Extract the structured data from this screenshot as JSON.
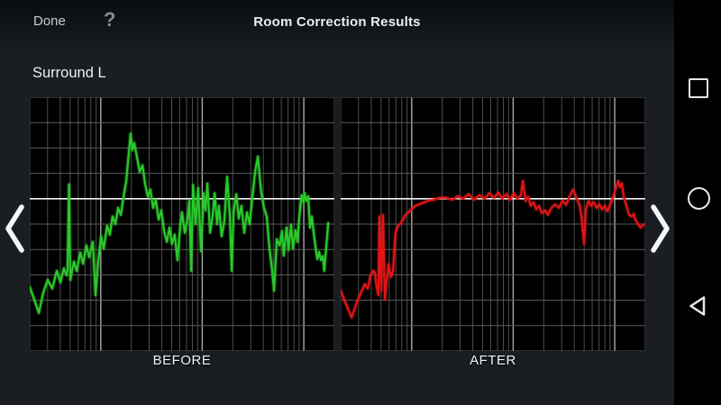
{
  "header": {
    "done_label": "Done",
    "help_icon": "?",
    "title": "Room Correction Results"
  },
  "channel_label": "Surround L",
  "colors": {
    "app_bg": "#1a1d21",
    "header_bg": "#0d1014",
    "nav_bg": "#000000",
    "chart_bg": "#000000",
    "grid_minor": "#4e4e4e",
    "grid_horizontal": "#5c5c5c",
    "grid_major": "#a9a9a9",
    "reference_line": "#f2f2f2",
    "before_curve": "#2bc92b",
    "after_curve": "#e41414",
    "icon_color": "#e6e8ea"
  },
  "chart_data": [
    {
      "type": "line",
      "title": "BEFORE",
      "x_axis": {
        "scale": "log",
        "min_hz": 20,
        "max_hz": 20000,
        "gridlines_hz": [
          20,
          30,
          40,
          50,
          60,
          70,
          80,
          90,
          100,
          200,
          300,
          400,
          500,
          600,
          700,
          800,
          900,
          1000,
          2000,
          3000,
          4000,
          5000,
          6000,
          7000,
          8000,
          9000,
          10000,
          20000
        ],
        "major_gridlines_hz": [
          100,
          1000,
          10000
        ]
      },
      "y_axis": {
        "unit": "dB",
        "min": -30,
        "max": 20,
        "gridline_step": 5,
        "reference_db": 0
      },
      "series": [
        {
          "name": "before-correction-response",
          "color": "#2bc92b",
          "points": [
            [
              0.0,
              -17.4
            ],
            [
              0.015,
              -19.9
            ],
            [
              0.03,
              -22.5
            ],
            [
              0.044,
              -18.6
            ],
            [
              0.059,
              -16.0
            ],
            [
              0.074,
              -17.7
            ],
            [
              0.089,
              -14.2
            ],
            [
              0.101,
              -16.5
            ],
            [
              0.112,
              -13.7
            ],
            [
              0.121,
              -15.1
            ],
            [
              0.124,
              -14.2
            ],
            [
              0.129,
              2.8
            ],
            [
              0.133,
              -16.0
            ],
            [
              0.145,
              -12.4
            ],
            [
              0.154,
              -14.2
            ],
            [
              0.166,
              -10.6
            ],
            [
              0.175,
              -12.8
            ],
            [
              0.186,
              -9.2
            ],
            [
              0.195,
              -11.5
            ],
            [
              0.207,
              -8.5
            ],
            [
              0.216,
              -19.0
            ],
            [
              0.225,
              -12.4
            ],
            [
              0.234,
              -7.4
            ],
            [
              0.243,
              -9.8
            ],
            [
              0.254,
              -5.3
            ],
            [
              0.263,
              -7.1
            ],
            [
              0.272,
              -3.5
            ],
            [
              0.281,
              -5.0
            ],
            [
              0.29,
              -1.8
            ],
            [
              0.299,
              -3.2
            ],
            [
              0.308,
              0.4
            ],
            [
              0.317,
              3.5
            ],
            [
              0.325,
              8.9
            ],
            [
              0.331,
              12.8
            ],
            [
              0.337,
              9.6
            ],
            [
              0.343,
              11.0
            ],
            [
              0.352,
              8.2
            ],
            [
              0.361,
              5.3
            ],
            [
              0.37,
              6.6
            ],
            [
              0.379,
              2.8
            ],
            [
              0.388,
              0.4
            ],
            [
              0.396,
              1.8
            ],
            [
              0.405,
              -1.8
            ],
            [
              0.414,
              -0.2
            ],
            [
              0.423,
              -4.1
            ],
            [
              0.432,
              -2.3
            ],
            [
              0.441,
              -6.4
            ],
            [
              0.45,
              -8.5
            ],
            [
              0.459,
              -5.7
            ],
            [
              0.467,
              -8.9
            ],
            [
              0.476,
              -7.1
            ],
            [
              0.485,
              -12.1
            ],
            [
              0.494,
              -5.3
            ],
            [
              0.5,
              -2.7
            ],
            [
              0.509,
              -6.7
            ],
            [
              0.518,
              -3.9
            ],
            [
              0.524,
              -0.4
            ],
            [
              0.53,
              -14.2
            ],
            [
              0.536,
              2.7
            ],
            [
              0.544,
              -5.0
            ],
            [
              0.553,
              2.1
            ],
            [
              0.562,
              -10.3
            ],
            [
              0.571,
              1.1
            ],
            [
              0.577,
              -2.3
            ],
            [
              0.583,
              3.0
            ],
            [
              0.592,
              -6.7
            ],
            [
              0.601,
              -3.2
            ],
            [
              0.607,
              1.1
            ],
            [
              0.615,
              -5.0
            ],
            [
              0.621,
              -1.4
            ],
            [
              0.63,
              -7.4
            ],
            [
              0.639,
              -4.3
            ],
            [
              0.648,
              4.3
            ],
            [
              0.657,
              -3.5
            ],
            [
              0.663,
              -14.2
            ],
            [
              0.669,
              -2.7
            ],
            [
              0.678,
              0.9
            ],
            [
              0.686,
              -3.9
            ],
            [
              0.695,
              -1.4
            ],
            [
              0.704,
              -6.7
            ],
            [
              0.713,
              -2.7
            ],
            [
              0.722,
              -5.0
            ],
            [
              0.731,
              0.4
            ],
            [
              0.74,
              5.3
            ],
            [
              0.749,
              8.3
            ],
            [
              0.754,
              4.8
            ],
            [
              0.76,
              1.2
            ],
            [
              0.769,
              -1.8
            ],
            [
              0.778,
              -3.5
            ],
            [
              0.787,
              -9.8
            ],
            [
              0.796,
              -14.2
            ],
            [
              0.802,
              -18.1
            ],
            [
              0.811,
              -8.0
            ],
            [
              0.82,
              -9.2
            ],
            [
              0.828,
              -6.4
            ],
            [
              0.834,
              -11.2
            ],
            [
              0.843,
              -5.7
            ],
            [
              0.849,
              -10.1
            ],
            [
              0.858,
              -5.1
            ],
            [
              0.864,
              -9.8
            ],
            [
              0.873,
              -6.2
            ],
            [
              0.879,
              -8.5
            ],
            [
              0.885,
              -3.5
            ],
            [
              0.893,
              0.7
            ],
            [
              0.899,
              -0.7
            ],
            [
              0.902,
              1.1
            ],
            [
              0.908,
              -0.4
            ],
            [
              0.914,
              0.5
            ],
            [
              0.92,
              -5.7
            ],
            [
              0.926,
              -3.5
            ],
            [
              0.932,
              -6.6
            ],
            [
              0.938,
              -9.4
            ],
            [
              0.944,
              -11.9
            ],
            [
              0.95,
              -10.5
            ],
            [
              0.956,
              -12.1
            ],
            [
              0.962,
              -11.3
            ],
            [
              0.967,
              -14.2
            ],
            [
              0.98,
              -4.8
            ]
          ]
        }
      ]
    },
    {
      "type": "line",
      "title": "AFTER",
      "x_axis": {
        "scale": "log",
        "min_hz": 20,
        "max_hz": 20000,
        "gridlines_hz": [
          20,
          30,
          40,
          50,
          60,
          70,
          80,
          90,
          100,
          200,
          300,
          400,
          500,
          600,
          700,
          800,
          900,
          1000,
          2000,
          3000,
          4000,
          5000,
          6000,
          7000,
          8000,
          9000,
          10000,
          20000
        ],
        "major_gridlines_hz": [
          100,
          1000,
          10000
        ]
      },
      "y_axis": {
        "unit": "dB",
        "min": -30,
        "max": 20,
        "gridline_step": 5,
        "reference_db": 0
      },
      "series": [
        {
          "name": "after-correction-response",
          "color": "#e41414",
          "points": [
            [
              0.0,
              -18.1
            ],
            [
              0.015,
              -20.4
            ],
            [
              0.036,
              -23.4
            ],
            [
              0.053,
              -20.4
            ],
            [
              0.068,
              -18.3
            ],
            [
              0.08,
              -16.8
            ],
            [
              0.089,
              -17.7
            ],
            [
              0.098,
              -15.1
            ],
            [
              0.107,
              -14.2
            ],
            [
              0.112,
              -14.5
            ],
            [
              0.118,
              -17.4
            ],
            [
              0.124,
              -19.0
            ],
            [
              0.127,
              -3.5
            ],
            [
              0.133,
              -18.1
            ],
            [
              0.139,
              -3.2
            ],
            [
              0.145,
              -19.9
            ],
            [
              0.151,
              -16.0
            ],
            [
              0.157,
              -12.9
            ],
            [
              0.166,
              -15.4
            ],
            [
              0.172,
              -14.2
            ],
            [
              0.18,
              -6.7
            ],
            [
              0.189,
              -5.3
            ],
            [
              0.198,
              -4.8
            ],
            [
              0.213,
              -3.2
            ],
            [
              0.228,
              -2.3
            ],
            [
              0.246,
              -1.4
            ],
            [
              0.266,
              -0.9
            ],
            [
              0.287,
              -0.4
            ],
            [
              0.305,
              -0.2
            ],
            [
              0.325,
              0.2
            ],
            [
              0.346,
              0.2
            ],
            [
              0.367,
              -0.2
            ],
            [
              0.385,
              0.5
            ],
            [
              0.402,
              0.0
            ],
            [
              0.42,
              0.9
            ],
            [
              0.438,
              -0.2
            ],
            [
              0.456,
              0.7
            ],
            [
              0.473,
              0.0
            ],
            [
              0.488,
              1.1
            ],
            [
              0.503,
              0.2
            ],
            [
              0.518,
              1.2
            ],
            [
              0.53,
              0.0
            ],
            [
              0.544,
              0.9
            ],
            [
              0.556,
              -0.2
            ],
            [
              0.568,
              1.1
            ],
            [
              0.58,
              0.0
            ],
            [
              0.592,
              0.7
            ],
            [
              0.598,
              3.5
            ],
            [
              0.607,
              -0.4
            ],
            [
              0.615,
              0.4
            ],
            [
              0.624,
              -1.4
            ],
            [
              0.633,
              -0.7
            ],
            [
              0.642,
              -2.1
            ],
            [
              0.651,
              -1.4
            ],
            [
              0.66,
              -2.8
            ],
            [
              0.672,
              -2.3
            ],
            [
              0.68,
              -3.2
            ],
            [
              0.692,
              -1.8
            ],
            [
              0.704,
              -1.1
            ],
            [
              0.716,
              -1.8
            ],
            [
              0.728,
              -0.4
            ],
            [
              0.74,
              -1.2
            ],
            [
              0.751,
              0.4
            ],
            [
              0.763,
              1.8
            ],
            [
              0.775,
              0.0
            ],
            [
              0.784,
              -1.2
            ],
            [
              0.79,
              -3.2
            ],
            [
              0.799,
              -8.9
            ],
            [
              0.805,
              -2.1
            ],
            [
              0.814,
              -0.4
            ],
            [
              0.822,
              -1.4
            ],
            [
              0.831,
              -0.7
            ],
            [
              0.84,
              -1.8
            ],
            [
              0.849,
              -1.1
            ],
            [
              0.858,
              -2.1
            ],
            [
              0.867,
              -1.4
            ],
            [
              0.876,
              -2.5
            ],
            [
              0.885,
              -1.1
            ],
            [
              0.893,
              0.0
            ],
            [
              0.902,
              1.8
            ],
            [
              0.911,
              3.5
            ],
            [
              0.917,
              2.3
            ],
            [
              0.923,
              3.0
            ],
            [
              0.929,
              0.4
            ],
            [
              0.938,
              -1.4
            ],
            [
              0.947,
              -3.2
            ],
            [
              0.956,
              -3.5
            ],
            [
              0.962,
              -3.0
            ],
            [
              0.967,
              -4.1
            ],
            [
              0.976,
              -5.0
            ],
            [
              0.985,
              -5.7
            ],
            [
              0.994,
              -5.1
            ]
          ]
        }
      ]
    }
  ],
  "pager": {
    "prev_icon": "chevron-left",
    "next_icon": "chevron-right"
  },
  "android_nav": {
    "recents_icon": "square",
    "home_icon": "circle",
    "back_icon": "triangle-left"
  }
}
